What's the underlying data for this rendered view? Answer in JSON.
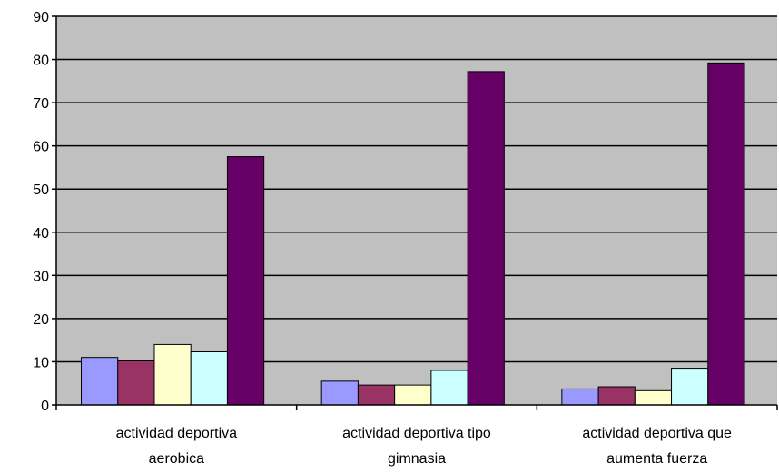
{
  "chart_data": {
    "type": "bar",
    "title": "",
    "xlabel": "",
    "ylabel": "",
    "ylim": [
      0,
      90
    ],
    "yticks": [
      0,
      10,
      20,
      30,
      40,
      50,
      60,
      70,
      80,
      90
    ],
    "grid": true,
    "legend": "none",
    "categories": [
      [
        "actividad deportiva",
        "aerobica"
      ],
      [
        "actividad deportiva tipo",
        "gimnasia"
      ],
      [
        "actividad deportiva que",
        "aumenta fuerza"
      ]
    ],
    "series": [
      {
        "color": "#9999ff",
        "values": [
          11,
          5.5,
          3.7
        ]
      },
      {
        "color": "#993366",
        "values": [
          10.2,
          4.6,
          4.2
        ]
      },
      {
        "color": "#ffffcc",
        "values": [
          14,
          4.6,
          3.3
        ]
      },
      {
        "color": "#ccffff",
        "values": [
          12.3,
          8,
          8.5
        ]
      },
      {
        "color": "#660066",
        "values": [
          57.5,
          77.2,
          79.2
        ]
      }
    ],
    "colors": {
      "plot_background": "#c0c0c0",
      "gridline": "#000000",
      "bar_outline": "#000000"
    }
  }
}
